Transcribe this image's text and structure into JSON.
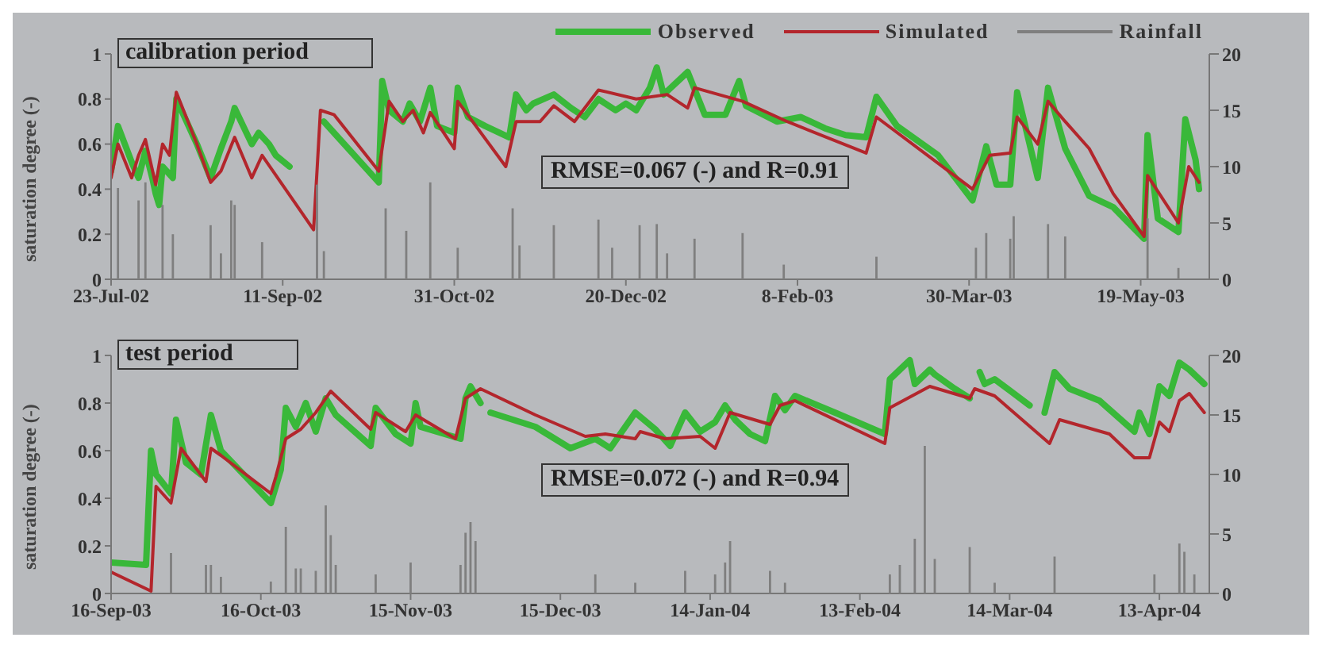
{
  "chart_data": [
    {
      "type": "line",
      "title": "calibration period",
      "ylabel": "saturation degree (-)",
      "annotations": [
        "RMSE=0.067 (-) and R=0.91"
      ],
      "legend": "top right",
      "xlim": [
        "2002-07-23",
        "2003-06-08"
      ],
      "xticks": [
        {
          "value": "2002-07-23",
          "label": "23-Jul-02"
        },
        {
          "value": "2002-09-11",
          "label": "11-Sep-02"
        },
        {
          "value": "2002-10-31",
          "label": "31-Oct-02"
        },
        {
          "value": "2002-12-20",
          "label": "20-Dec-02"
        },
        {
          "value": "2003-02-08",
          "label": "8-Feb-03"
        },
        {
          "value": "2003-03-30",
          "label": "30-Mar-03"
        },
        {
          "value": "2003-05-19",
          "label": "19-May-03"
        }
      ],
      "ylim": [
        0,
        1
      ],
      "yticks": [
        0,
        0.2,
        0.4,
        0.6,
        0.8,
        1
      ],
      "y2lim": [
        0,
        20
      ],
      "y2ticks": [
        0,
        5,
        10,
        15,
        20
      ],
      "series": [
        {
          "name": "Observed",
          "color": "#39b839",
          "x": [
            "2002-07-23",
            "2002-07-25",
            "2002-07-29",
            "2002-07-31",
            "2002-08-02",
            "2002-08-04",
            "2002-08-05",
            "2002-08-06",
            "2002-08-07",
            "2002-08-10",
            "2002-08-11",
            "2002-08-17",
            "2002-08-21",
            "2002-08-24",
            "2002-08-27",
            "2002-08-28",
            "2002-09-02",
            "2002-09-04",
            "2002-09-07",
            "2002-09-09",
            "2002-09-13",
            "2002-09-18",
            "2002-09-23",
            "2002-10-09",
            "2002-10-10",
            "2002-10-12",
            "2002-10-16",
            "2002-10-18",
            "2002-10-21",
            "2002-10-24",
            "2002-10-26",
            "2002-10-31",
            "2002-11-01",
            "2002-11-04",
            "2002-11-09",
            "2002-11-16",
            "2002-11-18",
            "2002-11-21",
            "2002-11-23",
            "2002-11-29",
            "2002-12-04",
            "2002-12-08",
            "2002-12-12",
            "2002-12-17",
            "2002-12-20",
            "2002-12-23",
            "2002-12-27",
            "2002-12-29",
            "2002-12-31",
            "2003-01-07",
            "2003-01-12",
            "2003-01-18",
            "2003-01-22",
            "2003-01-24",
            "2003-02-02",
            "2003-02-09",
            "2003-02-16",
            "2003-02-22",
            "2003-02-28",
            "2003-03-03",
            "2003-03-09",
            "2003-03-21",
            "2003-03-31",
            "2003-04-04",
            "2003-04-07",
            "2003-04-11",
            "2003-04-13",
            "2003-04-19",
            "2003-04-22",
            "2003-04-27",
            "2003-05-04",
            "2003-05-11",
            "2003-05-20",
            "2003-05-21",
            "2003-05-24",
            "2003-05-30",
            "2003-06-01",
            "2003-06-04",
            "2003-06-05"
          ],
          "values": [
            0.48,
            0.68,
            0.52,
            0.45,
            0.57,
            0.45,
            0.38,
            0.33,
            0.5,
            0.45,
            0.8,
            0.6,
            0.45,
            0.58,
            0.7,
            0.76,
            0.6,
            0.65,
            0.6,
            0.55,
            0.5,
            null,
            0.7,
            0.43,
            0.88,
            0.75,
            0.7,
            0.78,
            0.7,
            0.85,
            0.68,
            0.65,
            0.85,
            0.72,
            0.68,
            0.63,
            0.82,
            0.75,
            0.78,
            0.82,
            0.76,
            0.72,
            0.8,
            0.75,
            0.78,
            0.75,
            0.85,
            0.94,
            0.82,
            0.92,
            0.73,
            0.73,
            0.88,
            0.77,
            0.7,
            0.72,
            0.67,
            0.64,
            0.63,
            0.81,
            0.68,
            0.55,
            0.35,
            0.59,
            0.42,
            0.42,
            0.83,
            0.45,
            0.85,
            0.58,
            0.37,
            0.32,
            0.18,
            0.64,
            0.27,
            0.21,
            0.71,
            0.53,
            0.4
          ]
        },
        {
          "name": "Simulated",
          "color": "#b3262c",
          "x": [
            "2002-07-23",
            "2002-07-25",
            "2002-07-29",
            "2002-07-31",
            "2002-08-02",
            "2002-08-05",
            "2002-08-07",
            "2002-08-09",
            "2002-08-11",
            "2002-08-17",
            "2002-08-21",
            "2002-08-24",
            "2002-08-28",
            "2002-09-02",
            "2002-09-05",
            "2002-09-20",
            "2002-09-21",
            "2002-09-22",
            "2002-09-26",
            "2002-10-09",
            "2002-10-12",
            "2002-10-16",
            "2002-10-19",
            "2002-10-22",
            "2002-10-24",
            "2002-10-31",
            "2002-11-01",
            "2002-11-15",
            "2002-11-18",
            "2002-11-25",
            "2002-11-29",
            "2002-12-05",
            "2002-12-12",
            "2002-12-23",
            "2003-01-01",
            "2003-01-07",
            "2003-01-09",
            "2003-01-23",
            "2003-02-05",
            "2003-02-28",
            "2003-03-03",
            "2003-03-31",
            "2003-04-02",
            "2003-04-05",
            "2003-04-11",
            "2003-04-13",
            "2003-04-19",
            "2003-04-22",
            "2003-04-27",
            "2003-05-04",
            "2003-05-11",
            "2003-05-20",
            "2003-05-21",
            "2003-05-30",
            "2003-06-02",
            "2003-06-05"
          ],
          "values": [
            0.45,
            0.6,
            0.45,
            0.55,
            0.62,
            0.42,
            0.6,
            0.55,
            0.83,
            0.6,
            0.43,
            0.48,
            0.63,
            0.45,
            0.55,
            0.22,
            0.48,
            0.75,
            0.73,
            0.48,
            0.79,
            0.7,
            0.75,
            0.65,
            0.74,
            0.58,
            0.79,
            0.5,
            0.7,
            0.7,
            0.77,
            0.7,
            0.84,
            0.8,
            0.82,
            0.76,
            0.85,
            0.79,
            0.7,
            0.56,
            0.72,
            0.4,
            0.46,
            0.55,
            0.56,
            0.72,
            0.6,
            0.79,
            0.7,
            0.58,
            0.38,
            0.19,
            0.46,
            0.25,
            0.5,
            0.43
          ]
        },
        {
          "name": "Rainfall",
          "type": "bar",
          "axis": "y2",
          "color": "#7f7f7f",
          "x": [
            "2002-07-25",
            "2002-07-31",
            "2002-08-02",
            "2002-08-07",
            "2002-08-10",
            "2002-08-21",
            "2002-08-24",
            "2002-08-27",
            "2002-08-28",
            "2002-09-05",
            "2002-09-21",
            "2002-09-23",
            "2002-10-11",
            "2002-10-17",
            "2002-10-24",
            "2002-11-01",
            "2002-11-17",
            "2002-11-19",
            "2002-11-29",
            "2002-12-12",
            "2002-12-16",
            "2002-12-24",
            "2002-12-29",
            "2003-01-01",
            "2003-01-09",
            "2003-01-23",
            "2003-02-04",
            "2003-03-03",
            "2003-04-01",
            "2003-04-04",
            "2003-04-11",
            "2003-04-12",
            "2003-04-22",
            "2003-04-27",
            "2003-05-21",
            "2003-05-30"
          ],
          "values": [
            8.1,
            7,
            8.6,
            6.6,
            4,
            4.8,
            2.3,
            7,
            6.6,
            3.3,
            8.4,
            2.5,
            6.3,
            4.3,
            8.6,
            2.8,
            6.3,
            3,
            4.8,
            5.3,
            2.8,
            4.8,
            4.9,
            2.3,
            3.6,
            4.1,
            1.3,
            2,
            2.8,
            4.1,
            3.6,
            5.6,
            4.9,
            3.8,
            5.4,
            1
          ]
        }
      ]
    },
    {
      "type": "line",
      "title": "test period",
      "ylabel": "saturation degree (-)",
      "annotations": [
        "RMSE=0.072 (-) and R=0.94"
      ],
      "xlim": [
        "2003-09-16",
        "2004-04-23"
      ],
      "xticks": [
        {
          "value": "2003-09-16",
          "label": "16-Sep-03"
        },
        {
          "value": "2003-10-16",
          "label": "16-Oct-03"
        },
        {
          "value": "2003-11-15",
          "label": "15-Nov-03"
        },
        {
          "value": "2003-12-15",
          "label": "15-Dec-03"
        },
        {
          "value": "2004-01-14",
          "label": "14-Jan-04"
        },
        {
          "value": "2004-02-13",
          "label": "13-Feb-04"
        },
        {
          "value": "2004-03-14",
          "label": "14-Mar-04"
        },
        {
          "value": "2004-04-13",
          "label": "13-Apr-04"
        }
      ],
      "ylim": [
        0,
        1
      ],
      "yticks": [
        0,
        0.2,
        0.4,
        0.6,
        0.8,
        1
      ],
      "y2lim": [
        0,
        20
      ],
      "y2ticks": [
        0,
        5,
        10,
        15,
        20
      ],
      "series": [
        {
          "color": "#39b839",
          "x": [
            "2003-09-16",
            "2003-09-23",
            "2003-09-24",
            "2003-09-25",
            "2003-09-28",
            "2003-09-29",
            "2003-10-01",
            "2003-10-04",
            "2003-10-06",
            "2003-10-08",
            "2003-10-18",
            "2003-10-20",
            "2003-10-21",
            "2003-10-23",
            "2003-10-25",
            "2003-10-27",
            "2003-10-29",
            "2003-10-31",
            "2003-11-07",
            "2003-11-08",
            "2003-11-12",
            "2003-11-15",
            "2003-11-16",
            "2003-11-17",
            "2003-11-25",
            "2003-11-26",
            "2003-11-27",
            "2003-11-29",
            "2003-11-30",
            "2003-12-01",
            "2003-12-10",
            "2003-12-17",
            "2003-12-22",
            "2003-12-25",
            "2003-12-30",
            "2004-01-03",
            "2004-01-06",
            "2004-01-09",
            "2004-01-12",
            "2004-01-15",
            "2004-01-17",
            "2004-01-19",
            "2004-01-22",
            "2004-01-25",
            "2004-01-27",
            "2004-01-29",
            "2004-01-31",
            "2004-02-08",
            "2004-02-18",
            "2004-02-19",
            "2004-02-23",
            "2004-02-24",
            "2004-02-27",
            "2004-02-28",
            "2004-03-03",
            "2004-03-06",
            "2004-03-07",
            "2004-03-08",
            "2004-03-09",
            "2004-03-11",
            "2004-03-18",
            "2004-03-20",
            "2004-03-21",
            "2004-03-23",
            "2004-03-26",
            "2004-04-01",
            "2004-04-08",
            "2004-04-09",
            "2004-04-11",
            "2004-04-13",
            "2004-04-15",
            "2004-04-17",
            "2004-04-19",
            "2004-04-22"
          ],
          "values": [
            0.13,
            0.12,
            0.6,
            0.5,
            0.42,
            0.73,
            0.55,
            0.5,
            0.75,
            0.6,
            0.38,
            0.52,
            0.78,
            0.7,
            0.8,
            0.68,
            0.82,
            0.75,
            0.62,
            0.78,
            0.67,
            0.63,
            0.8,
            0.7,
            0.65,
            0.82,
            0.87,
            0.8,
            null,
            0.76,
            0.7,
            0.61,
            0.65,
            0.61,
            0.76,
            0.69,
            0.62,
            0.76,
            0.68,
            0.72,
            0.79,
            0.73,
            0.67,
            0.64,
            0.83,
            0.77,
            0.83,
            0.76,
            0.67,
            0.9,
            0.98,
            0.88,
            0.94,
            0.92,
            0.86,
            0.82,
            null,
            0.93,
            0.88,
            0.9,
            0.79,
            null,
            0.76,
            0.93,
            0.86,
            0.81,
            0.68,
            0.76,
            0.67,
            0.87,
            0.83,
            0.97,
            0.94,
            0.88
          ]
        },
        {
          "color": "#b3262c",
          "x": [
            "2003-09-16",
            "2003-09-24",
            "2003-09-25",
            "2003-09-28",
            "2003-09-30",
            "2003-10-05",
            "2003-10-06",
            "2003-10-08",
            "2003-10-18",
            "2003-10-19",
            "2003-10-21",
            "2003-10-24",
            "2003-10-27",
            "2003-10-30",
            "2003-11-07",
            "2003-11-08",
            "2003-11-14",
            "2003-11-16",
            "2003-11-24",
            "2003-11-26",
            "2003-11-29",
            "2003-12-10",
            "2003-12-20",
            "2003-12-24",
            "2003-12-30",
            "2003-12-31",
            "2004-01-05",
            "2004-01-12",
            "2004-01-15",
            "2004-01-18",
            "2004-01-26",
            "2004-01-28",
            "2004-01-31",
            "2004-02-18",
            "2004-02-19",
            "2004-02-27",
            "2004-03-06",
            "2004-03-07",
            "2004-03-11",
            "2004-03-22",
            "2004-03-24",
            "2004-04-03",
            "2004-04-08",
            "2004-04-11",
            "2004-04-13",
            "2004-04-15",
            "2004-04-17",
            "2004-04-19",
            "2004-04-22"
          ],
          "values": [
            0.09,
            0.01,
            0.45,
            0.38,
            0.61,
            0.47,
            0.61,
            0.58,
            0.42,
            0.49,
            0.65,
            0.69,
            0.76,
            0.85,
            0.69,
            0.76,
            0.68,
            0.75,
            0.65,
            0.82,
            0.86,
            0.75,
            0.66,
            0.67,
            0.65,
            0.68,
            0.65,
            0.66,
            0.61,
            0.76,
            0.71,
            0.79,
            0.81,
            0.63,
            0.78,
            0.87,
            0.82,
            0.86,
            0.83,
            0.63,
            0.73,
            0.67,
            0.57,
            0.57,
            0.72,
            0.68,
            0.81,
            0.84,
            0.76
          ]
        },
        {
          "type": "bar",
          "axis": "y2",
          "color": "#7f7f7f",
          "x": [
            "2003-09-28",
            "2003-10-05",
            "2003-10-06",
            "2003-10-08",
            "2003-10-18",
            "2003-10-21",
            "2003-10-23",
            "2003-10-24",
            "2003-10-27",
            "2003-10-29",
            "2003-10-30",
            "2003-10-31",
            "2003-11-08",
            "2003-11-15",
            "2003-11-25",
            "2003-11-26",
            "2003-11-27",
            "2003-11-28",
            "2003-12-22",
            "2003-12-30",
            "2004-01-09",
            "2004-01-15",
            "2004-01-17",
            "2004-01-18",
            "2004-01-26",
            "2004-01-29",
            "2004-02-19",
            "2004-02-21",
            "2004-02-24",
            "2004-02-26",
            "2004-02-28",
            "2004-03-06",
            "2004-03-11",
            "2004-03-23",
            "2004-04-12",
            "2004-04-17",
            "2004-04-18",
            "2004-04-20"
          ],
          "values": [
            3.4,
            2.4,
            2.4,
            1.4,
            1,
            5.6,
            2.1,
            2.1,
            1.9,
            7.4,
            4.9,
            2.4,
            1.6,
            2.6,
            2.4,
            5.1,
            6,
            4.4,
            1.6,
            0.9,
            1.9,
            1.6,
            2.6,
            4.4,
            1.9,
            0.9,
            1.6,
            2.4,
            4.6,
            12.4,
            2.9,
            3.9,
            0.9,
            3.1,
            1.6,
            4.2,
            3.5,
            1.6
          ]
        }
      ]
    }
  ]
}
